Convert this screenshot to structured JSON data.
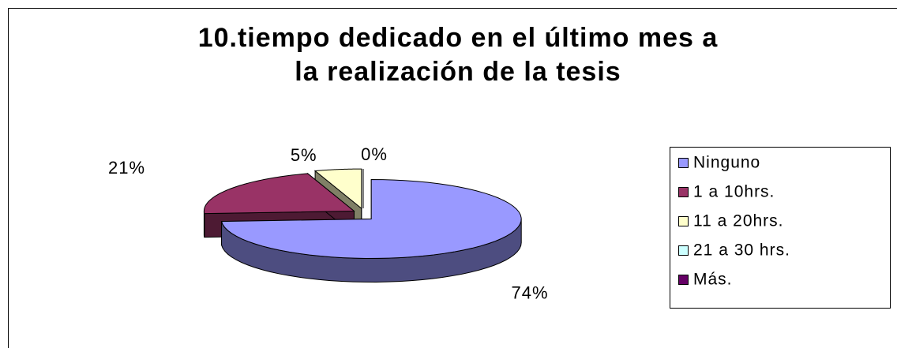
{
  "chart_data": {
    "type": "pie3d",
    "title": [
      "10.tiempo dedicado en el último mes a",
      "la realización de la tesis"
    ],
    "categories": [
      "Ninguno",
      "1 a 10hrs.",
      "11 a 20hrs.",
      "21 a 30 hrs.",
      "Más."
    ],
    "values": [
      74,
      21,
      5,
      0,
      0
    ],
    "value_labels": [
      "74%",
      "21%",
      "5%",
      "0%",
      null
    ],
    "colors": [
      "#9999ff",
      "#993366",
      "#ffffcc",
      "#ccffff",
      "#660066"
    ],
    "side_colors": [
      "#4d4d80",
      "#4d1a33",
      "#808066",
      "#668080",
      "#330033"
    ],
    "legend": "right"
  }
}
